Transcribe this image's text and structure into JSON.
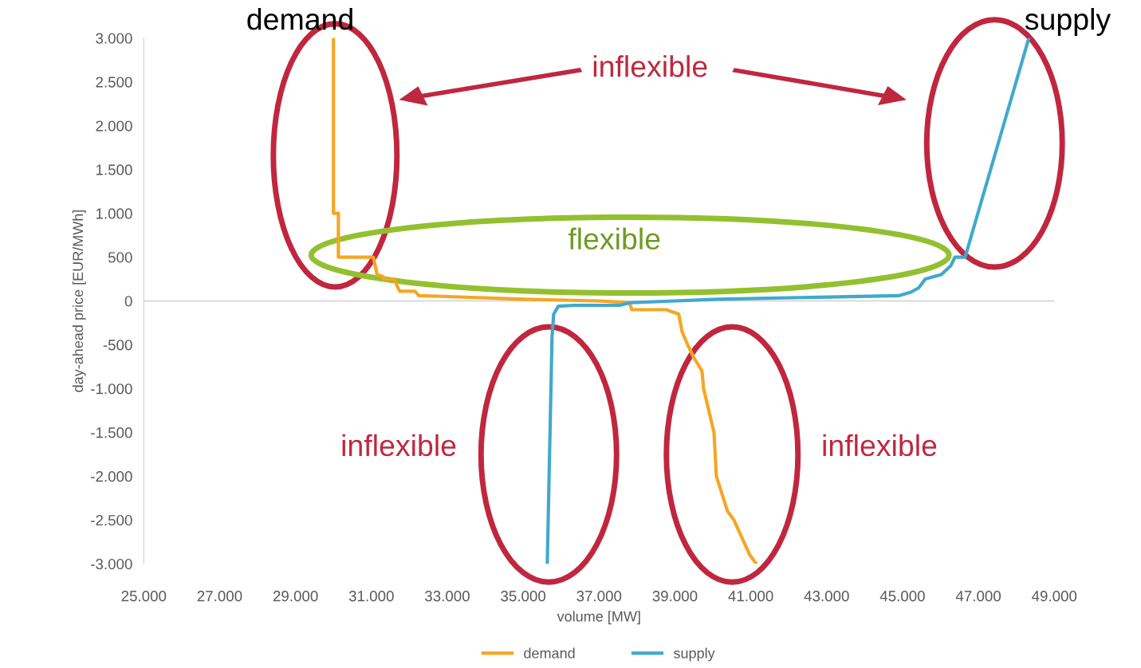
{
  "chart_data": {
    "type": "line",
    "xlabel": "volume [MW]",
    "ylabel": "day-ahead price [EUR/MWh]",
    "series": [
      {
        "name": "demand",
        "color": "#f5a623",
        "x": [
          30000,
          30000,
          30130,
          30130,
          31050,
          31150,
          31300,
          31330,
          31600,
          31700,
          31750,
          32150,
          32250,
          33000,
          35000,
          37000,
          37800,
          37865,
          38770,
          39100,
          39189,
          39336,
          39504,
          39714,
          39756,
          39756,
          40030,
          40093,
          40387,
          40555,
          40975,
          41143
        ],
        "values": [
          3000,
          1000,
          1000,
          500,
          500,
          300,
          280,
          250,
          250,
          150,
          110,
          110,
          60,
          50,
          20,
          0,
          -20,
          -100,
          -100,
          -150,
          -350,
          -500,
          -650,
          -800,
          -1000,
          -1000,
          -1500,
          -2000,
          -2400,
          -2500,
          -2900,
          -3000
        ]
      },
      {
        "name": "supply",
        "color": "#41a9cc",
        "x": [
          35636,
          35762,
          35805,
          35930,
          36350,
          37550,
          37820,
          40130,
          44900,
          45220,
          45430,
          45600,
          46020,
          46270,
          46380,
          46650,
          48330
        ],
        "values": [
          -3000,
          -400,
          -150,
          -60,
          -50,
          -50,
          -20,
          20,
          60,
          100,
          150,
          250,
          300,
          400,
          500,
          500,
          3000
        ]
      }
    ],
    "xlim": [
      25000,
      49000
    ],
    "xticks": [
      {
        "value": 25000,
        "label": "25.000"
      },
      {
        "value": 27000,
        "label": "27.000"
      },
      {
        "value": 29000,
        "label": "29.000"
      },
      {
        "value": 31000,
        "label": "31.000"
      },
      {
        "value": 33000,
        "label": "33.000"
      },
      {
        "value": 35000,
        "label": "35.000"
      },
      {
        "value": 37000,
        "label": "37.000"
      },
      {
        "value": 39000,
        "label": "39.000"
      },
      {
        "value": 41000,
        "label": "41.000"
      },
      {
        "value": 43000,
        "label": "43.000"
      },
      {
        "value": 45000,
        "label": "45.000"
      },
      {
        "value": 47000,
        "label": "47.000"
      },
      {
        "value": 49000,
        "label": "49.000"
      }
    ],
    "ylim": [
      -3000,
      3000
    ],
    "yticks": [
      {
        "value": -3000,
        "label": "-3.000"
      },
      {
        "value": -2500,
        "label": "-2.500"
      },
      {
        "value": -2000,
        "label": "-2.000"
      },
      {
        "value": -1500,
        "label": "-1.500"
      },
      {
        "value": -1000,
        "label": "-1.000"
      },
      -500,
      0,
      500,
      {
        "value": 1000,
        "label": "1.000"
      },
      {
        "value": 1500,
        "label": "1.500"
      },
      {
        "value": 2000,
        "label": "2.000"
      },
      {
        "value": 2500,
        "label": "2.500"
      },
      {
        "value": 3000,
        "label": "3.000"
      }
    ],
    "ref_lines": [
      {
        "axis": "y",
        "value": 0,
        "color": "#d0d0d0"
      }
    ],
    "annotations": [
      {
        "text": "demand",
        "x": 30000,
        "y": 3000
      },
      {
        "text": "supply",
        "x": 48330,
        "y": 3000
      },
      "inflexible",
      "inflexible",
      "inflexible",
      "flexible"
    ],
    "grid": false,
    "legend": "bottom",
    "marker": "none",
    "line_style": "solid"
  }
}
